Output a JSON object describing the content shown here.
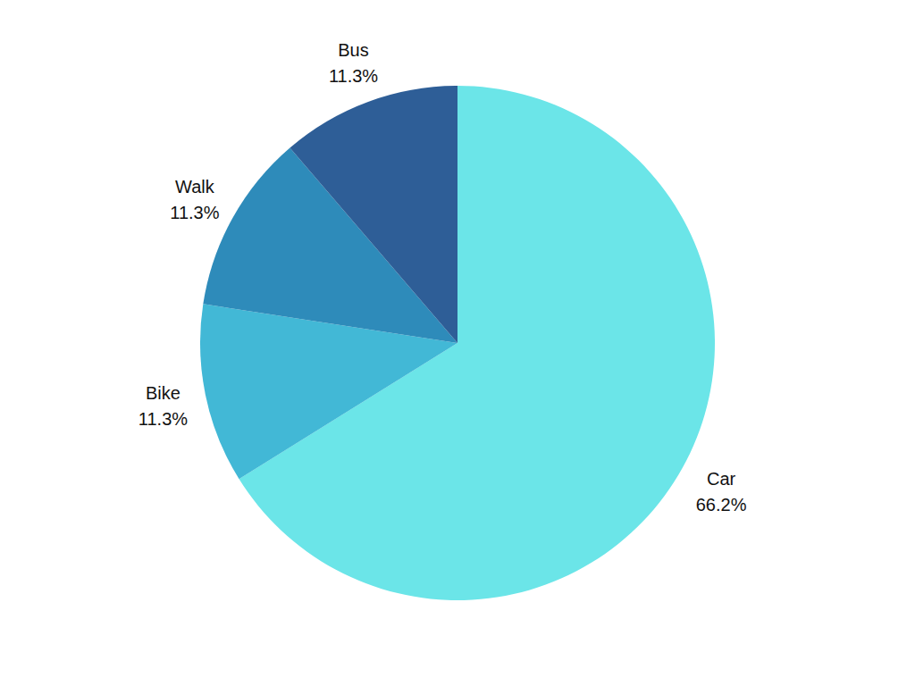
{
  "chart_data": {
    "type": "pie",
    "categories": [
      "Car",
      "Bike",
      "Walk",
      "Bus"
    ],
    "values": [
      66.2,
      11.3,
      11.3,
      11.3
    ],
    "value_labels": [
      "66.2%",
      "11.3%",
      "11.3%",
      "11.3%"
    ],
    "colors": [
      "#6be5e8",
      "#42b8d6",
      "#2e8bba",
      "#2e5e97"
    ],
    "data_labels": true
  }
}
